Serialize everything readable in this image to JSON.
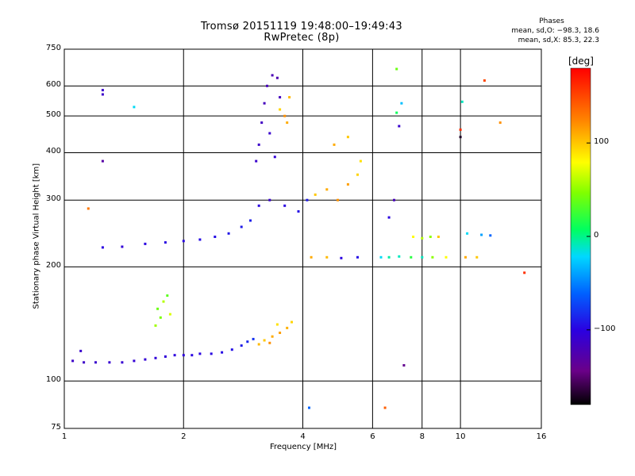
{
  "title_line1": "Tromsø 20151119 19:48:00–19:49:43",
  "title_line2": "RwPretec (8p)",
  "stats": {
    "heading": "Phases",
    "line_o": "mean, sd,O: −98.3, 18.6",
    "line_x": "mean, sd,X:  85.3, 22.3"
  },
  "colorbar": {
    "unit": "[deg]",
    "ticks": [
      {
        "value": 100,
        "label": "100"
      },
      {
        "value": 0,
        "label": "0"
      },
      {
        "value": -100,
        "label": "−100"
      }
    ],
    "range": [
      -180,
      180
    ]
  },
  "chart_data": {
    "type": "scatter",
    "xlabel": "Frequency [MHz]",
    "ylabel": "Stationary phase Virtual Height [km]",
    "xscale": "log",
    "yscale": "log",
    "xlim": [
      1,
      16
    ],
    "ylim": [
      75,
      750
    ],
    "grid": true,
    "x_ticks": [
      {
        "value": 1,
        "label": "1"
      },
      {
        "value": 2,
        "label": "2"
      },
      {
        "value": 4,
        "label": "4"
      },
      {
        "value": 6,
        "label": "6"
      },
      {
        "value": 8,
        "label": "8"
      },
      {
        "value": 10,
        "label": "10"
      },
      {
        "value": 16,
        "label": "16"
      }
    ],
    "y_ticks": [
      {
        "value": 75,
        "label": "75"
      },
      {
        "value": 100,
        "label": "100"
      },
      {
        "value": 200,
        "label": "200"
      },
      {
        "value": 300,
        "label": "300"
      },
      {
        "value": 400,
        "label": "400"
      },
      {
        "value": 500,
        "label": "500"
      },
      {
        "value": 600,
        "label": "600"
      },
      {
        "value": 750,
        "label": "750"
      }
    ],
    "x_grid": [
      1,
      2,
      4,
      6,
      8,
      10,
      16
    ],
    "y_grid": [
      75,
      100,
      200,
      300,
      400,
      500,
      600,
      750
    ],
    "color_variable": "phase (deg)",
    "points": [
      {
        "x": 1.05,
        "y": 113,
        "c": -112
      },
      {
        "x": 1.12,
        "y": 112,
        "c": -112
      },
      {
        "x": 1.2,
        "y": 112,
        "c": -110
      },
      {
        "x": 1.3,
        "y": 112,
        "c": -108
      },
      {
        "x": 1.4,
        "y": 112,
        "c": -108
      },
      {
        "x": 1.5,
        "y": 113,
        "c": -106
      },
      {
        "x": 1.6,
        "y": 114,
        "c": -106
      },
      {
        "x": 1.7,
        "y": 115,
        "c": -104
      },
      {
        "x": 1.8,
        "y": 116,
        "c": -104
      },
      {
        "x": 1.9,
        "y": 117,
        "c": -102
      },
      {
        "x": 2.0,
        "y": 117,
        "c": -102
      },
      {
        "x": 2.1,
        "y": 117,
        "c": -100
      },
      {
        "x": 2.2,
        "y": 118,
        "c": -100
      },
      {
        "x": 2.35,
        "y": 118,
        "c": -98
      },
      {
        "x": 2.5,
        "y": 119,
        "c": -96
      },
      {
        "x": 2.65,
        "y": 121,
        "c": -94
      },
      {
        "x": 2.8,
        "y": 124,
        "c": -90
      },
      {
        "x": 2.9,
        "y": 127,
        "c": -85
      },
      {
        "x": 3.0,
        "y": 129,
        "c": -80
      },
      {
        "x": 3.2,
        "y": 128,
        "c": 100
      },
      {
        "x": 3.35,
        "y": 131,
        "c": 110
      },
      {
        "x": 3.5,
        "y": 134,
        "c": 115
      },
      {
        "x": 3.65,
        "y": 138,
        "c": 108
      },
      {
        "x": 3.75,
        "y": 143,
        "c": 95
      },
      {
        "x": 3.3,
        "y": 126,
        "c": 120
      },
      {
        "x": 3.1,
        "y": 125,
        "c": 105
      },
      {
        "x": 3.45,
        "y": 141,
        "c": 90
      },
      {
        "x": 1.72,
        "y": 155,
        "c": 40
      },
      {
        "x": 1.78,
        "y": 162,
        "c": 60
      },
      {
        "x": 1.82,
        "y": 168,
        "c": 35
      },
      {
        "x": 1.75,
        "y": 147,
        "c": 45
      },
      {
        "x": 1.85,
        "y": 150,
        "c": 70
      },
      {
        "x": 1.7,
        "y": 140,
        "c": 55
      },
      {
        "x": 1.25,
        "y": 225,
        "c": -100
      },
      {
        "x": 1.4,
        "y": 226,
        "c": -105
      },
      {
        "x": 1.6,
        "y": 230,
        "c": -100
      },
      {
        "x": 1.8,
        "y": 232,
        "c": -98
      },
      {
        "x": 2.0,
        "y": 234,
        "c": -98
      },
      {
        "x": 2.2,
        "y": 236,
        "c": -96
      },
      {
        "x": 2.4,
        "y": 240,
        "c": -95
      },
      {
        "x": 2.6,
        "y": 245,
        "c": -92
      },
      {
        "x": 2.8,
        "y": 255,
        "c": -90
      },
      {
        "x": 2.95,
        "y": 265,
        "c": -88
      },
      {
        "x": 3.05,
        "y": 380,
        "c": -110
      },
      {
        "x": 3.1,
        "y": 420,
        "c": -112
      },
      {
        "x": 3.15,
        "y": 480,
        "c": -115
      },
      {
        "x": 3.2,
        "y": 540,
        "c": -118
      },
      {
        "x": 3.25,
        "y": 600,
        "c": -120
      },
      {
        "x": 3.35,
        "y": 640,
        "c": -122
      },
      {
        "x": 3.45,
        "y": 630,
        "c": -125
      },
      {
        "x": 3.5,
        "y": 560,
        "c": -118
      },
      {
        "x": 3.3,
        "y": 450,
        "c": -110
      },
      {
        "x": 3.4,
        "y": 390,
        "c": -105
      },
      {
        "x": 3.5,
        "y": 520,
        "c": 95
      },
      {
        "x": 3.65,
        "y": 480,
        "c": 110
      },
      {
        "x": 3.7,
        "y": 560,
        "c": 105
      },
      {
        "x": 3.6,
        "y": 500,
        "c": 120
      },
      {
        "x": 3.1,
        "y": 290,
        "c": -100
      },
      {
        "x": 3.3,
        "y": 300,
        "c": -110
      },
      {
        "x": 3.6,
        "y": 290,
        "c": -100
      },
      {
        "x": 3.9,
        "y": 280,
        "c": -95
      },
      {
        "x": 4.1,
        "y": 300,
        "c": -90
      },
      {
        "x": 4.3,
        "y": 310,
        "c": 100
      },
      {
        "x": 4.6,
        "y": 320,
        "c": 110
      },
      {
        "x": 4.9,
        "y": 300,
        "c": 120
      },
      {
        "x": 5.2,
        "y": 330,
        "c": 115
      },
      {
        "x": 5.5,
        "y": 350,
        "c": 95
      },
      {
        "x": 5.6,
        "y": 380,
        "c": 90
      },
      {
        "x": 4.8,
        "y": 420,
        "c": 110
      },
      {
        "x": 5.2,
        "y": 440,
        "c": 100
      },
      {
        "x": 4.2,
        "y": 212,
        "c": 110
      },
      {
        "x": 4.6,
        "y": 212,
        "c": 105
      },
      {
        "x": 5.0,
        "y": 211,
        "c": -100
      },
      {
        "x": 5.5,
        "y": 212,
        "c": -95
      },
      {
        "x": 6.3,
        "y": 212,
        "c": -20
      },
      {
        "x": 6.6,
        "y": 212,
        "c": -5
      },
      {
        "x": 7.0,
        "y": 213,
        "c": -10
      },
      {
        "x": 7.5,
        "y": 212,
        "c": 20
      },
      {
        "x": 8.0,
        "y": 212,
        "c": -10
      },
      {
        "x": 8.5,
        "y": 212,
        "c": 50
      },
      {
        "x": 9.2,
        "y": 212,
        "c": 80
      },
      {
        "x": 10.3,
        "y": 212,
        "c": 110
      },
      {
        "x": 11.0,
        "y": 212,
        "c": 100
      },
      {
        "x": 6.6,
        "y": 270,
        "c": -100
      },
      {
        "x": 6.8,
        "y": 300,
        "c": -120
      },
      {
        "x": 7.0,
        "y": 470,
        "c": -110
      },
      {
        "x": 6.9,
        "y": 510,
        "c": 10
      },
      {
        "x": 7.1,
        "y": 540,
        "c": -30
      },
      {
        "x": 7.6,
        "y": 240,
        "c": 80
      },
      {
        "x": 8.0,
        "y": 238,
        "c": 60
      },
      {
        "x": 8.4,
        "y": 240,
        "c": 50
      },
      {
        "x": 8.8,
        "y": 240,
        "c": 100
      },
      {
        "x": 10.4,
        "y": 245,
        "c": -20
      },
      {
        "x": 11.3,
        "y": 243,
        "c": -40
      },
      {
        "x": 11.9,
        "y": 242,
        "c": -60
      },
      {
        "x": 1.25,
        "y": 585,
        "c": -110
      },
      {
        "x": 1.25,
        "y": 570,
        "c": -112
      },
      {
        "x": 1.5,
        "y": 528,
        "c": -20
      },
      {
        "x": 1.25,
        "y": 380,
        "c": -130
      },
      {
        "x": 1.15,
        "y": 285,
        "c": 130
      },
      {
        "x": 1.1,
        "y": 120,
        "c": -110
      },
      {
        "x": 4.15,
        "y": 85,
        "c": -60
      },
      {
        "x": 6.45,
        "y": 85,
        "c": 140
      },
      {
        "x": 10.0,
        "y": 440,
        "c": -170
      },
      {
        "x": 10.0,
        "y": 460,
        "c": 160
      },
      {
        "x": 11.5,
        "y": 620,
        "c": 150
      },
      {
        "x": 12.6,
        "y": 480,
        "c": 120
      },
      {
        "x": 14.5,
        "y": 193,
        "c": 160
      },
      {
        "x": 6.9,
        "y": 665,
        "c": 40
      },
      {
        "x": 7.2,
        "y": 110,
        "c": -140
      },
      {
        "x": 10.1,
        "y": 545,
        "c": -10
      }
    ]
  }
}
